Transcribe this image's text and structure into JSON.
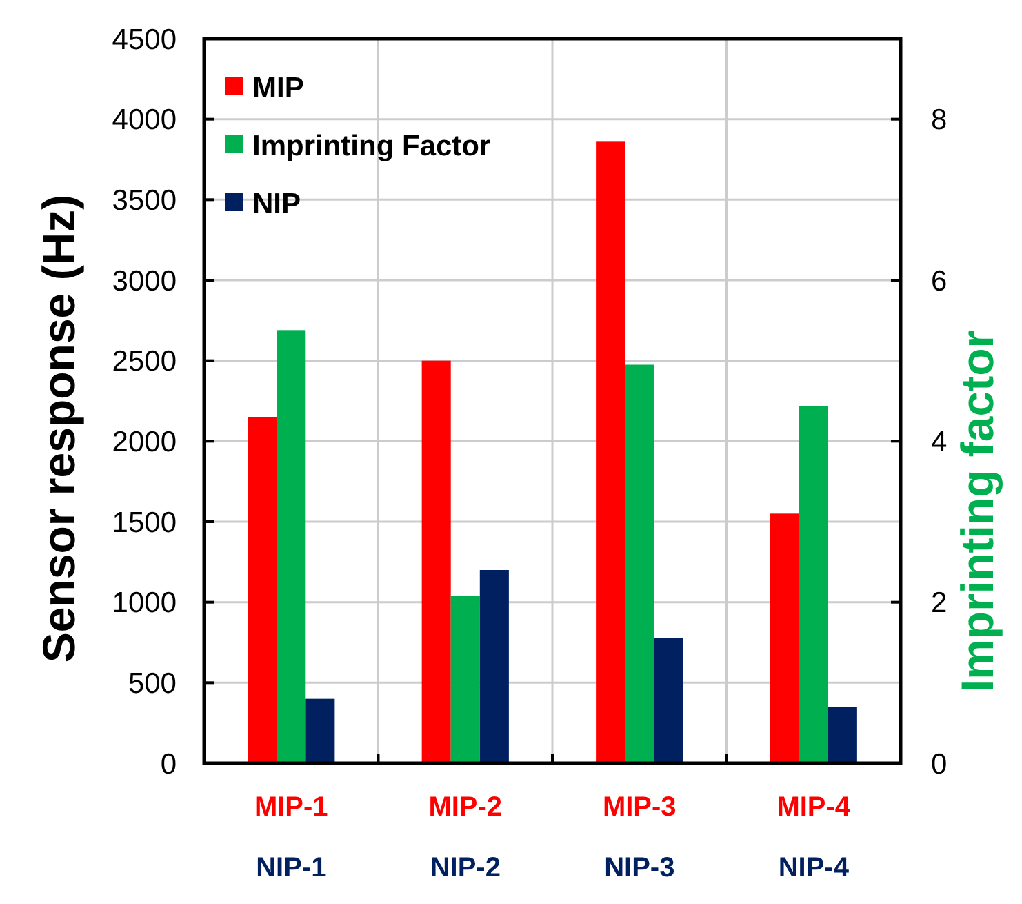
{
  "chart_data": {
    "type": "bar",
    "ylabel": "Sensor response (Hz)",
    "y2label": "Imprinting factor",
    "categories": [
      "MIP-1\nNIP-1",
      "MIP-2\nNIP-2",
      "MIP-3\nNIP-3",
      "MIP-4\nNIP-4"
    ],
    "series": [
      {
        "name": "MIP",
        "color": "#ff0000",
        "values": [
          2150,
          2500,
          3860,
          1550
        ]
      },
      {
        "name": "Imprinting Factor",
        "color": "#00b050",
        "axis": "y2",
        "values": [
          5.38,
          2.08,
          4.95,
          4.44
        ]
      },
      {
        "name": "NIP",
        "color": "#002060",
        "values": [
          400,
          1200,
          780,
          350
        ]
      }
    ],
    "ylim": [
      0,
      4500
    ],
    "yticks": [
      0,
      500,
      1000,
      1500,
      2000,
      2500,
      3000,
      3500,
      4000,
      4500
    ],
    "y2lim": [
      0,
      9
    ],
    "y2ticks": [
      0,
      2,
      4,
      6,
      8
    ],
    "grid": true,
    "legend": "top left"
  }
}
